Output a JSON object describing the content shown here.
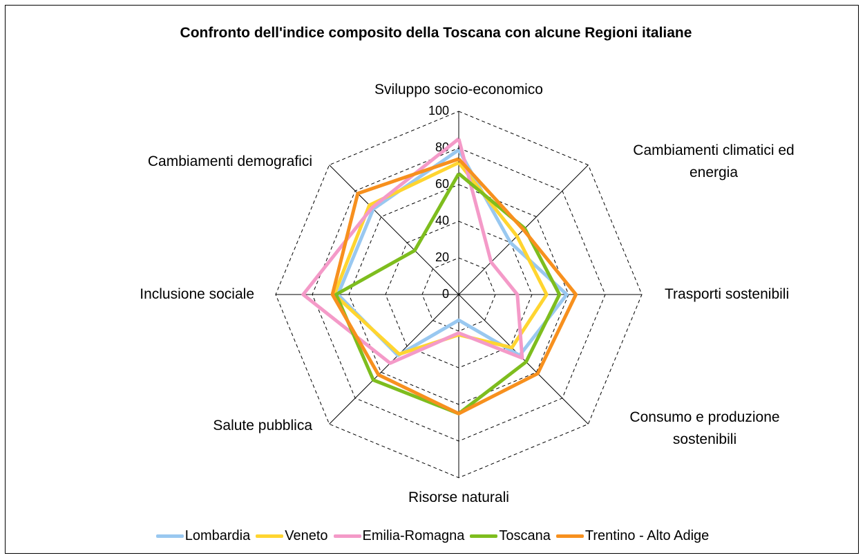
{
  "chart_data": {
    "type": "radar",
    "title": "Confronto dell'indice composito della Toscana con alcune Regioni italiane",
    "categories": [
      "Sviluppo socio-economico",
      "Cambiamenti climatici ed energia",
      "Trasporti sostenibili",
      "Consumo e produzione sostenibili",
      "Risorse naturali",
      "Salute pubblica",
      "Inclusione sociale",
      "Cambiamenti demografici"
    ],
    "series": [
      {
        "name": "Lombardia",
        "color": "#99c8f0",
        "values": [
          79,
          40,
          59,
          47,
          14,
          47,
          66,
          66
        ]
      },
      {
        "name": "Veneto",
        "color": "#ffd530",
        "values": [
          72,
          45,
          48,
          41,
          22,
          46,
          68,
          69
        ]
      },
      {
        "name": "Emilia-Romagna",
        "color": "#f49ac8",
        "values": [
          85,
          25,
          32,
          49,
          21,
          53,
          85,
          67
        ]
      },
      {
        "name": "Toscana",
        "color": "#7ebd1e",
        "values": [
          66,
          51,
          55,
          52,
          65,
          66,
          67,
          34
        ]
      },
      {
        "name": "Trentino - Alto Adige",
        "color": "#f7901e",
        "values": [
          74,
          50,
          64,
          61,
          65,
          62,
          69,
          78
        ]
      }
    ],
    "ylim": [
      0,
      100
    ],
    "yticks": [
      0,
      20,
      40,
      60,
      80,
      100
    ],
    "grid": true,
    "legend": "bottom"
  }
}
